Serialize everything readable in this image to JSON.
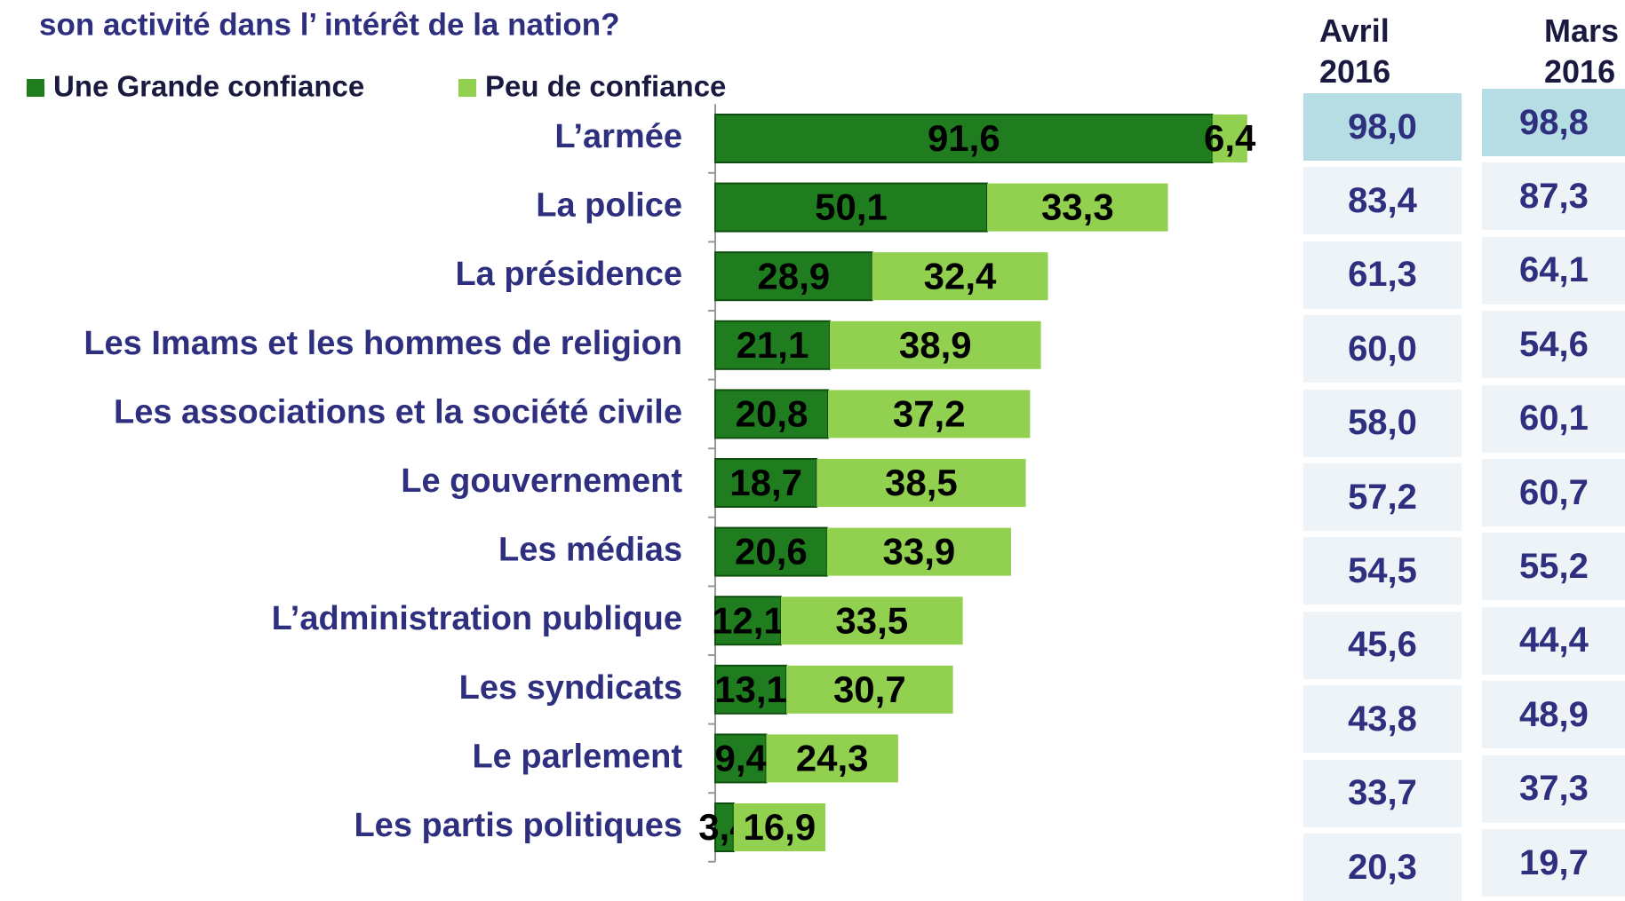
{
  "chart_data": {
    "type": "bar",
    "orientation": "horizontal",
    "stacked": true,
    "title": "son activité dans l’ intérêt de la nation?",
    "categories": [
      "L’armée",
      "La police",
      "La présidence",
      "Les Imams et les hommes de religion",
      "Les associations et la société civile",
      "Le gouvernement",
      "Les médias",
      "L’administration publique",
      "Les syndicats",
      "Le parlement",
      "Les partis politiques"
    ],
    "series": [
      {
        "name": "Une Grande confiance",
        "color": "#1f7d1f",
        "values": [
          91.6,
          50.1,
          28.9,
          21.1,
          20.8,
          18.7,
          20.6,
          12.1,
          13.1,
          9.4,
          3.4
        ],
        "value_labels": [
          "91,6",
          "50,1",
          "28,9",
          "21,1",
          "20,8",
          "18,7",
          "20,6",
          "12,1",
          "13,1",
          "9,4",
          "3,4"
        ]
      },
      {
        "name": "Peu de confiance",
        "color": "#92d050",
        "values": [
          6.4,
          33.3,
          32.4,
          38.9,
          37.2,
          38.5,
          33.9,
          33.5,
          30.7,
          24.3,
          16.9
        ],
        "value_labels": [
          "6,4",
          "33,3",
          "32,4",
          "38,9",
          "37,2",
          "38,5",
          "33,9",
          "33,5",
          "30,7",
          "24,3",
          "16,9"
        ]
      }
    ],
    "xlim": [
      0,
      100
    ],
    "table": {
      "columns": [
        {
          "header": "Avril 2016",
          "values": [
            "98,0",
            "83,4",
            "61,3",
            "60,0",
            "58,0",
            "57,2",
            "54,5",
            "45,6",
            "43,8",
            "33,7",
            "20,3"
          ]
        },
        {
          "header": "Mars 2016",
          "values": [
            "98,8",
            "87,3",
            "64,1",
            "54,6",
            "60,1",
            "60,7",
            "55,2",
            "44,4",
            "48,9",
            "37,3",
            "19,7"
          ]
        }
      ]
    }
  }
}
